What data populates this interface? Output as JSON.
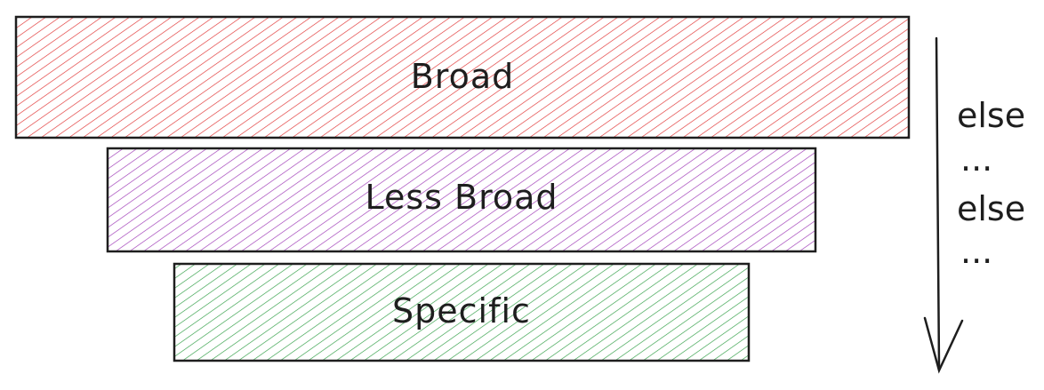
{
  "diagram": {
    "tiers": [
      {
        "label": "Broad",
        "color": "#e03131"
      },
      {
        "label": "Less Broad",
        "color": "#9c36b5"
      },
      {
        "label": "Specific",
        "color": "#2f9e44"
      }
    ],
    "flow_labels": [
      "else",
      "...",
      "else",
      "..."
    ],
    "stroke_color": "#1e1e1e",
    "arrow_icon": "down-arrow-icon"
  }
}
